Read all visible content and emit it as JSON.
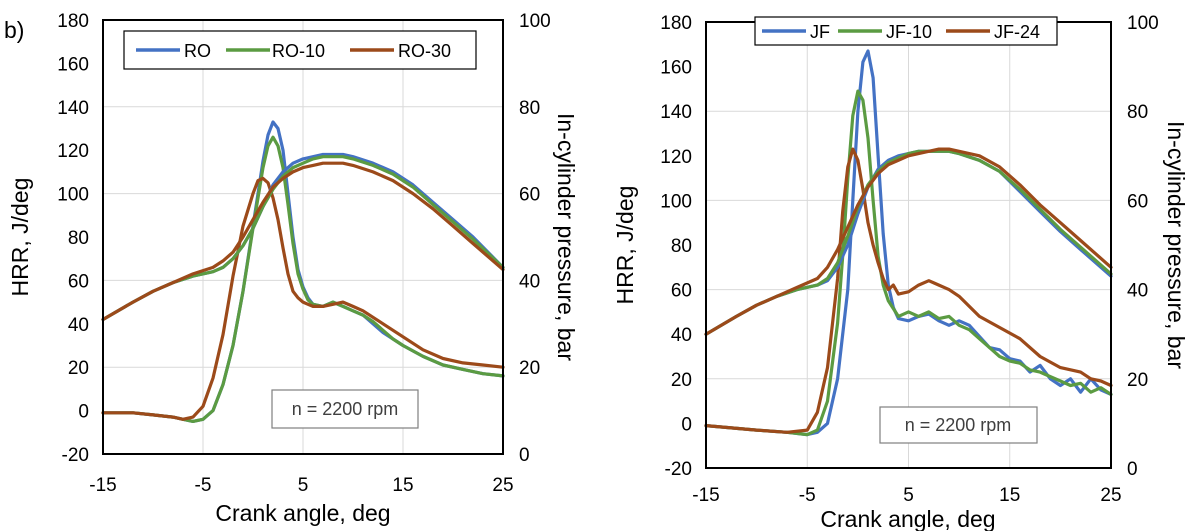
{
  "panel_label": "b)",
  "colors": {
    "blue": "#4472c4",
    "green": "#5b9b42",
    "brown": "#9c4a1a",
    "grid": "#d9d9d9"
  },
  "chart_data": [
    {
      "type": "line",
      "xlabel": "Crank angle, deg",
      "ylabel": "HRR, J/deg",
      "y2label": "In-cylinder pressure, bar",
      "xlim": [
        -15,
        25
      ],
      "ylim": [
        -20,
        180
      ],
      "y2lim": [
        0,
        100
      ],
      "xticks": [
        "-15",
        "-5",
        "5",
        "15",
        "25"
      ],
      "yticks": [
        "-20",
        "0",
        "20",
        "40",
        "60",
        "80",
        "100",
        "120",
        "140",
        "160",
        "180"
      ],
      "y2ticks": [
        "0",
        "20",
        "40",
        "60",
        "80",
        "100"
      ],
      "grid": true,
      "legend_position": "top-right",
      "annotation": "n = 2200 rpm",
      "series": [
        {
          "name": "RO",
          "color": "#4472c4",
          "axis": "hrr",
          "x": [
            -15,
            -12,
            -10,
            -8,
            -7,
            -6,
            -5,
            -4,
            -3,
            -2,
            -1,
            0,
            0.5,
            1,
            1.5,
            2,
            2.5,
            3,
            3.5,
            4,
            4.5,
            5,
            5.5,
            6,
            7,
            8,
            9,
            10,
            11,
            12,
            13,
            14,
            15,
            17,
            19,
            21,
            23,
            25
          ],
          "y": [
            -1,
            -1,
            -2,
            -3,
            -4,
            -5,
            -4,
            0,
            12,
            30,
            55,
            85,
            100,
            115,
            127,
            133,
            130,
            120,
            100,
            80,
            65,
            57,
            52,
            49,
            48,
            50,
            48,
            46,
            44,
            40,
            36,
            33,
            30,
            25,
            21,
            19,
            17,
            16
          ]
        },
        {
          "name": "RO-10",
          "color": "#5b9b42",
          "axis": "hrr",
          "x": [
            -15,
            -12,
            -10,
            -8,
            -7,
            -6,
            -5,
            -4,
            -3,
            -2,
            -1,
            0,
            0.5,
            1,
            1.5,
            2,
            2.5,
            3,
            3.5,
            4,
            4.5,
            5,
            5.5,
            6,
            7,
            8,
            9,
            10,
            11,
            12,
            13,
            14,
            15,
            17,
            19,
            21,
            23,
            25
          ],
          "y": [
            -1,
            -1,
            -2,
            -3,
            -4,
            -5,
            -4,
            0,
            12,
            30,
            55,
            84,
            98,
            112,
            122,
            126,
            122,
            112,
            95,
            77,
            63,
            56,
            51,
            49,
            48,
            50,
            48,
            46,
            44,
            41,
            37,
            33,
            30,
            25,
            21,
            19,
            17,
            16
          ]
        },
        {
          "name": "RO-30",
          "color": "#9c4a1a",
          "axis": "hrr",
          "x": [
            -15,
            -12,
            -10,
            -8,
            -7,
            -6,
            -5,
            -4,
            -3,
            -2,
            -1,
            0,
            0.5,
            1,
            1.5,
            2,
            2.5,
            3,
            3.5,
            4,
            4.5,
            5,
            5.5,
            6,
            7,
            8,
            9,
            10,
            11,
            12,
            13,
            14,
            15,
            17,
            19,
            21,
            23,
            25
          ],
          "y": [
            -1,
            -1,
            -2,
            -3,
            -4,
            -3,
            2,
            15,
            35,
            62,
            85,
            100,
            106,
            107,
            105,
            98,
            88,
            75,
            63,
            55,
            52,
            50,
            49,
            48,
            48,
            49,
            50,
            48,
            46,
            43,
            40,
            37,
            34,
            28,
            24,
            22,
            21,
            20
          ]
        },
        {
          "name": "RO",
          "color": "#4472c4",
          "axis": "pressure",
          "x": [
            -15,
            -12,
            -10,
            -8,
            -6,
            -4,
            -3,
            -2,
            -1,
            0,
            1,
            2,
            3,
            4,
            5,
            6,
            7,
            8,
            9,
            10,
            12,
            14,
            16,
            18,
            20,
            22,
            25
          ],
          "y": [
            31,
            35,
            37.5,
            39.5,
            41,
            42,
            43,
            45,
            48,
            52,
            57,
            62,
            65,
            67,
            68,
            68.5,
            69,
            69,
            69,
            68.5,
            67,
            65,
            62,
            58,
            54,
            50,
            43
          ]
        },
        {
          "name": "RO-10",
          "color": "#5b9b42",
          "axis": "pressure",
          "x": [
            -15,
            -12,
            -10,
            -8,
            -6,
            -4,
            -3,
            -2,
            -1,
            0,
            1,
            2,
            3,
            4,
            5,
            6,
            7,
            8,
            9,
            10,
            12,
            14,
            16,
            18,
            20,
            22,
            25
          ],
          "y": [
            31,
            35,
            37.5,
            39.5,
            41,
            42,
            43,
            45,
            48,
            52,
            57,
            61,
            64,
            66,
            67,
            68,
            68.5,
            68.5,
            68.5,
            68,
            66.5,
            64.5,
            61.5,
            57.5,
            53.5,
            49.5,
            43
          ]
        },
        {
          "name": "RO-30",
          "color": "#9c4a1a",
          "axis": "pressure",
          "x": [
            -15,
            -12,
            -10,
            -8,
            -6,
            -4,
            -3,
            -2,
            -1,
            0,
            1,
            2,
            3,
            4,
            5,
            6,
            7,
            8,
            9,
            10,
            12,
            14,
            16,
            18,
            20,
            22,
            25
          ],
          "y": [
            31,
            35,
            37.5,
            39.5,
            41.5,
            43,
            44.5,
            46.5,
            50,
            54,
            58,
            61.5,
            63.5,
            65,
            66,
            66.5,
            67,
            67,
            67,
            66.5,
            65,
            63,
            60,
            56.5,
            52.5,
            48.5,
            42.5
          ]
        }
      ]
    },
    {
      "type": "line",
      "xlabel": "Crank angle, deg",
      "ylabel": "HRR, J/deg",
      "y2label": "In-cylinder pressure, bar",
      "xlim": [
        -15,
        25
      ],
      "ylim": [
        -20,
        180
      ],
      "y2lim": [
        0,
        100
      ],
      "xticks": [
        "-15",
        "-5",
        "5",
        "15",
        "25"
      ],
      "yticks": [
        "-20",
        "0",
        "20",
        "40",
        "60",
        "80",
        "100",
        "120",
        "140",
        "160",
        "180"
      ],
      "y2ticks": [
        "0",
        "20",
        "40",
        "60",
        "80",
        "100"
      ],
      "grid": true,
      "legend_position": "top",
      "annotation": "n = 2200 rpm",
      "series": [
        {
          "name": "JF",
          "color": "#4472c4",
          "axis": "hrr",
          "x": [
            -15,
            -10,
            -7,
            -5,
            -4,
            -3,
            -2,
            -1,
            -0.5,
            0,
            0.5,
            1,
            1.5,
            2,
            2.5,
            3,
            3.5,
            4,
            5,
            6,
            7,
            8,
            9,
            10,
            11,
            12,
            13,
            14,
            15,
            16,
            17,
            18,
            19,
            20,
            21,
            22,
            23,
            24,
            25
          ],
          "y": [
            -1,
            -3,
            -4,
            -5,
            -4,
            0,
            20,
            60,
            100,
            140,
            162,
            167,
            155,
            120,
            85,
            62,
            52,
            47,
            46,
            48,
            49,
            46,
            44,
            46,
            44,
            39,
            34,
            33,
            29,
            28,
            23,
            26,
            20,
            17,
            20,
            14,
            20,
            15,
            13
          ]
        },
        {
          "name": "JF-10",
          "color": "#5b9b42",
          "axis": "hrr",
          "x": [
            -15,
            -10,
            -7,
            -5,
            -4,
            -3,
            -2,
            -1.5,
            -1,
            -0.5,
            0,
            0.5,
            1,
            1.5,
            2,
            2.5,
            3,
            4,
            5,
            6,
            7,
            8,
            9,
            10,
            11,
            12,
            13,
            14,
            15,
            16,
            17,
            18,
            19,
            20,
            21,
            22,
            23,
            24,
            25
          ],
          "y": [
            -1,
            -3,
            -4,
            -5,
            -3,
            10,
            45,
            75,
            110,
            138,
            149,
            145,
            128,
            100,
            75,
            62,
            55,
            48,
            50,
            48,
            50,
            47,
            48,
            44,
            42,
            38,
            34,
            30,
            28,
            27,
            24,
            23,
            21,
            19,
            17,
            18,
            14,
            16,
            13
          ]
        },
        {
          "name": "JF-24",
          "color": "#9c4a1a",
          "axis": "hrr",
          "x": [
            -15,
            -10,
            -7,
            -5,
            -4,
            -3,
            -2,
            -1.5,
            -1,
            -0.5,
            0,
            0.5,
            1,
            1.5,
            2,
            2.5,
            3,
            3.5,
            4,
            5,
            6,
            7,
            7.5,
            8,
            9,
            10,
            12,
            14,
            16,
            18,
            20,
            22,
            23,
            24,
            25
          ],
          "y": [
            -1,
            -3,
            -4,
            -3,
            5,
            25,
            65,
            95,
            115,
            123,
            118,
            105,
            90,
            80,
            72,
            65,
            60,
            62,
            58,
            59,
            62,
            64,
            63,
            62,
            60,
            57,
            48,
            43,
            38,
            30,
            25,
            23,
            20,
            19,
            17
          ]
        },
        {
          "name": "JF",
          "color": "#4472c4",
          "axis": "pressure",
          "x": [
            -15,
            -12,
            -10,
            -8,
            -6,
            -4,
            -3,
            -2,
            -1,
            0,
            1,
            2,
            3,
            4,
            5,
            6,
            7,
            8,
            9,
            10,
            12,
            14,
            16,
            18,
            20,
            22,
            25
          ],
          "y": [
            30,
            34,
            36.5,
            38.5,
            40,
            41,
            42,
            45,
            50,
            57,
            63,
            67,
            69,
            70,
            70.5,
            71,
            71,
            71,
            71,
            70.5,
            69,
            66.5,
            62,
            57.5,
            53,
            49,
            43
          ]
        },
        {
          "name": "JF-10",
          "color": "#5b9b42",
          "axis": "pressure",
          "x": [
            -15,
            -12,
            -10,
            -8,
            -6,
            -4,
            -3,
            -2,
            -1,
            0,
            1,
            2,
            3,
            4,
            5,
            6,
            7,
            8,
            9,
            10,
            12,
            14,
            16,
            18,
            20,
            22,
            25
          ],
          "y": [
            30,
            34,
            36.5,
            38.5,
            40,
            41,
            42.5,
            46,
            52,
            58.5,
            63.5,
            66.5,
            68.5,
            69.5,
            70.5,
            71,
            71,
            71,
            71,
            70.5,
            69,
            66.5,
            62.5,
            58,
            53.5,
            49.5,
            43.5
          ]
        },
        {
          "name": "JF-24",
          "color": "#9c4a1a",
          "axis": "pressure",
          "x": [
            -15,
            -12,
            -10,
            -8,
            -6,
            -4,
            -3,
            -2,
            -1,
            0,
            1,
            2,
            3,
            4,
            5,
            6,
            7,
            8,
            9,
            10,
            12,
            14,
            16,
            18,
            20,
            22,
            25
          ],
          "y": [
            30,
            34,
            36.5,
            38.5,
            40.5,
            42.5,
            45,
            49,
            54,
            59,
            63,
            66,
            68,
            69,
            70,
            70.5,
            71,
            71.5,
            71.5,
            71,
            70,
            67.5,
            63.5,
            59,
            55,
            51,
            45
          ]
        }
      ]
    }
  ]
}
